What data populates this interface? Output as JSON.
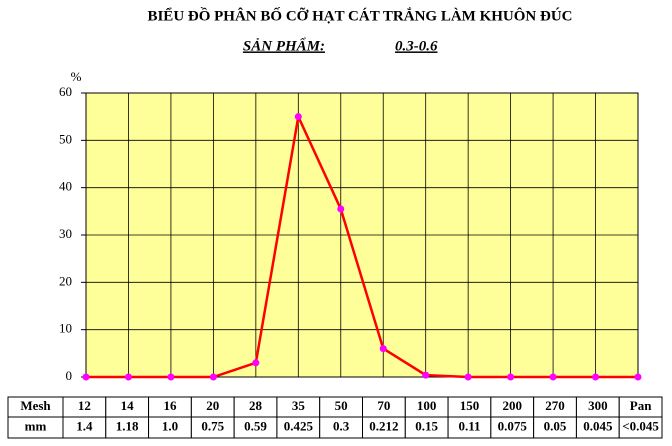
{
  "chart_data": {
    "type": "line",
    "title": "BIỂU ĐỒ PHÂN BỐ CỠ HẠT CÁT TRẮNG LÀM KHUÔN ĐÚC",
    "subtitle": "SẢN PHẨM:",
    "product": "0.3-0.6",
    "y_label": "%",
    "row_labels": [
      "Mesh",
      "mm"
    ],
    "categories": [
      "12",
      "14",
      "16",
      "20",
      "28",
      "35",
      "50",
      "70",
      "100",
      "150",
      "200",
      "270",
      "300",
      "Pan"
    ],
    "mm": [
      "1.4",
      "1.18",
      "1.0",
      "0.75",
      "0.59",
      "0.425",
      "0.3",
      "0.212",
      "0.15",
      "0.11",
      "0.075",
      "0.05",
      "0.045",
      "<0.045"
    ],
    "values": [
      0,
      0,
      0,
      0,
      3,
      55,
      35.5,
      6,
      0.4,
      0,
      0,
      0,
      0,
      0
    ],
    "color": "#ff0000",
    "marker_color": "#ff00ff",
    "background": "#ffff99",
    "ylim": [
      0,
      60
    ],
    "yticks": [
      0,
      10,
      20,
      30,
      40,
      50,
      60
    ],
    "grid": true
  }
}
